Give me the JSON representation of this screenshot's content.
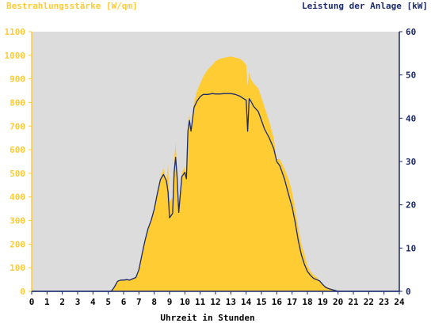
{
  "chart_data": {
    "type": "area",
    "left_axis_title": "Bestrahlungsstärke [W/qm]",
    "right_axis_title": "Leistung der Anlage [kW]",
    "xlabel": "Uhrzeit in Stunden",
    "xlim": [
      0,
      24
    ],
    "ylim_left": [
      0,
      1100
    ],
    "ylim_right": [
      0,
      60
    ],
    "x_ticks": [
      "0",
      "1",
      "2",
      "3",
      "4",
      "5",
      "6",
      "7",
      "8",
      "9",
      "10",
      "11",
      "12",
      "13",
      "14",
      "15",
      "16",
      "17",
      "18",
      "19",
      "20",
      "21",
      "22",
      "23",
      "24"
    ],
    "y_ticks_left": [
      "0",
      "100",
      "200",
      "300",
      "400",
      "500",
      "600",
      "700",
      "800",
      "900",
      "1000",
      "1100"
    ],
    "y_ticks_right": [
      "0",
      "10",
      "20",
      "30",
      "40",
      "50",
      "60"
    ],
    "grid": false,
    "colors": {
      "irradiance_fill": "#ffcc33",
      "power_line": "#1a2a6c",
      "plot_background": "#dcdcdc",
      "left_axis_text": "#ffcc33",
      "right_axis_text": "#1a2a6c"
    },
    "series": [
      {
        "axis": "left",
        "style": "area",
        "x": [
          0,
          5.2,
          5.4,
          5.6,
          5.8,
          6.0,
          6.2,
          6.4,
          6.6,
          6.8,
          7.0,
          7.2,
          7.4,
          7.6,
          7.8,
          8.0,
          8.2,
          8.4,
          8.6,
          8.8,
          8.9,
          9.0,
          9.2,
          9.3,
          9.4,
          9.5,
          9.6,
          9.8,
          10.0,
          10.1,
          10.2,
          10.3,
          10.4,
          10.6,
          10.8,
          11.0,
          11.2,
          11.5,
          11.8,
          12.0,
          12.3,
          12.6,
          13.0,
          13.3,
          13.6,
          13.8,
          14.0,
          14.1,
          14.2,
          14.3,
          14.5,
          14.8,
          15.0,
          15.2,
          15.5,
          15.8,
          16.0,
          16.2,
          16.5,
          16.8,
          17.0,
          17.2,
          17.4,
          17.6,
          17.8,
          18.0,
          18.2,
          18.4,
          18.6,
          18.8,
          19.0,
          19.2,
          19.4,
          19.6,
          19.8,
          20.0,
          20.2,
          24
        ],
        "values": [
          0,
          0,
          20,
          45,
          50,
          48,
          52,
          50,
          55,
          60,
          90,
          160,
          220,
          270,
          300,
          350,
          420,
          480,
          520,
          470,
          540,
          380,
          400,
          560,
          630,
          480,
          350,
          500,
          530,
          480,
          700,
          750,
          680,
          800,
          850,
          880,
          910,
          940,
          960,
          975,
          985,
          990,
          995,
          990,
          985,
          975,
          960,
          870,
          930,
          900,
          880,
          860,
          820,
          780,
          720,
          650,
          560,
          560,
          520,
          470,
          420,
          350,
          270,
          200,
          160,
          110,
          85,
          70,
          60,
          45,
          30,
          20,
          15,
          10,
          5,
          2,
          0,
          0
        ]
      },
      {
        "axis": "right",
        "style": "line",
        "x": [
          0,
          5.2,
          5.4,
          5.6,
          5.8,
          6.0,
          6.2,
          6.4,
          6.6,
          6.8,
          7.0,
          7.2,
          7.4,
          7.6,
          7.8,
          8.0,
          8.2,
          8.4,
          8.6,
          8.8,
          8.9,
          9.0,
          9.2,
          9.3,
          9.4,
          9.5,
          9.6,
          9.8,
          10.0,
          10.1,
          10.2,
          10.3,
          10.4,
          10.6,
          10.8,
          11.0,
          11.2,
          11.5,
          11.8,
          12.0,
          12.3,
          12.6,
          13.0,
          13.3,
          13.6,
          13.8,
          14.0,
          14.1,
          14.2,
          14.3,
          14.5,
          14.8,
          15.0,
          15.2,
          15.5,
          15.8,
          16.0,
          16.2,
          16.5,
          16.8,
          17.0,
          17.2,
          17.4,
          17.6,
          17.8,
          18.0,
          18.2,
          18.4,
          18.6,
          18.8,
          19.0,
          19.2,
          19.4,
          19.6,
          19.8,
          20.0,
          20.2,
          24
        ],
        "values": [
          0,
          0,
          1,
          2.3,
          2.6,
          2.6,
          2.7,
          2.6,
          2.9,
          3.2,
          5,
          8.5,
          11.8,
          14.5,
          16.4,
          19,
          22.5,
          25.8,
          27,
          25.5,
          23,
          17,
          18,
          27.5,
          31,
          26,
          18.2,
          26.5,
          27.5,
          26,
          37,
          39.5,
          37,
          42.5,
          44,
          45,
          45.5,
          45.5,
          45.7,
          45.6,
          45.6,
          45.7,
          45.7,
          45.5,
          45.1,
          44.6,
          44.2,
          37,
          44.5,
          44,
          42.7,
          41.5,
          39.5,
          37.5,
          35.5,
          33,
          30,
          29,
          26,
          22,
          19.5,
          16,
          11.8,
          8.5,
          6.3,
          4.6,
          3.7,
          3,
          2.7,
          2.4,
          1.6,
          0.9,
          0.6,
          0.4,
          0.2,
          0,
          0,
          0
        ]
      }
    ]
  }
}
